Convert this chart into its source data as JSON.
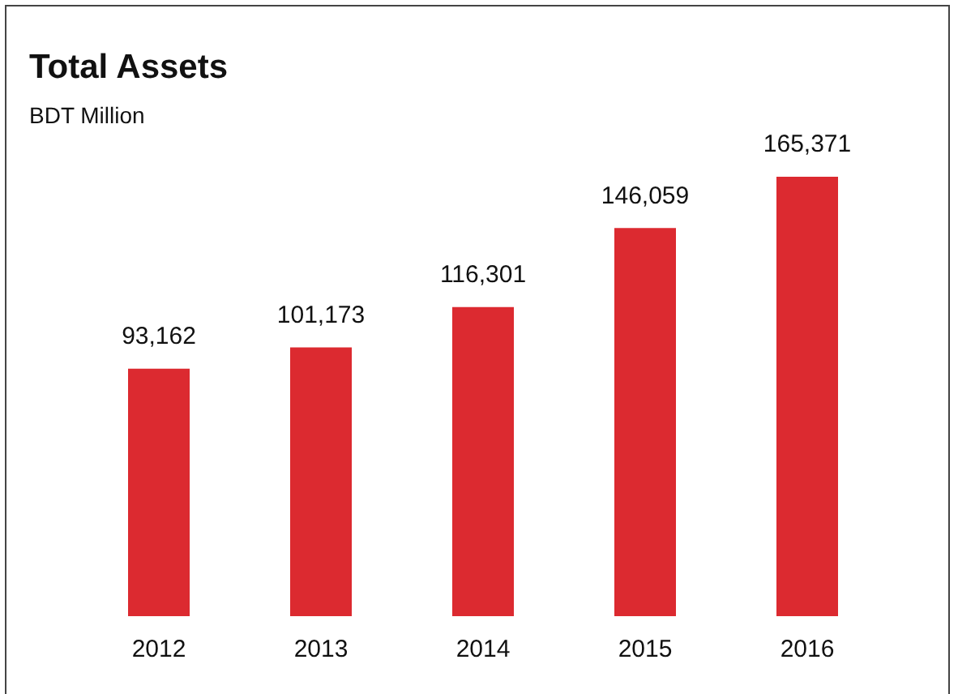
{
  "chart_data": {
    "type": "bar",
    "title": "Total Assets",
    "subtitle": "BDT Million",
    "categories": [
      "2012",
      "2013",
      "2014",
      "2015",
      "2016"
    ],
    "values": [
      93162,
      101173,
      116301,
      146059,
      165371
    ],
    "value_labels": [
      "93,162",
      "101,173",
      "116,301",
      "146,059",
      "165,371"
    ],
    "color": "#dc2a30",
    "grid": false,
    "legend": false
  }
}
